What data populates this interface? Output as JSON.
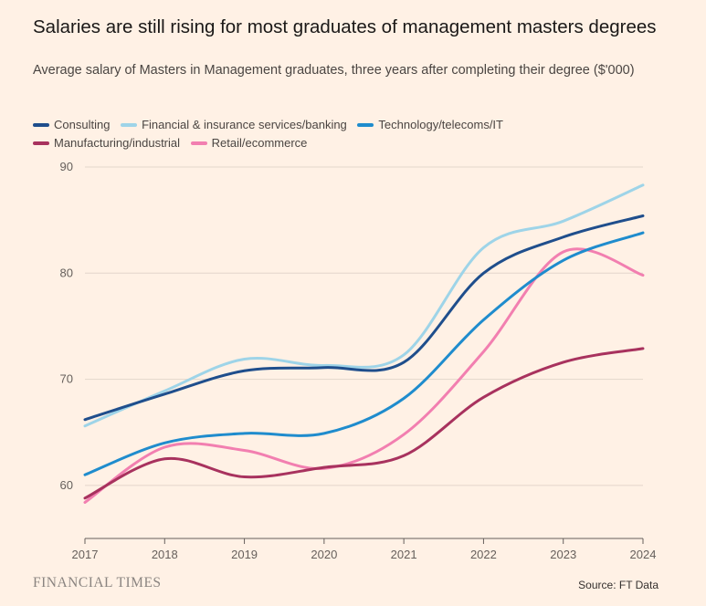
{
  "chart_data": {
    "type": "line",
    "title": "Salaries are still rising for most graduates of management masters degrees",
    "subtitle": "Average salary of Masters in Management graduates, three years after completing their degree ($'000)",
    "xlabel": "",
    "ylabel": "",
    "x": [
      "2017",
      "2018",
      "2019",
      "2020",
      "2021",
      "2022",
      "2023",
      "2024"
    ],
    "ylim": [
      55,
      90
    ],
    "yticks": [
      60,
      70,
      80,
      90
    ],
    "grid": true,
    "legend_position": "top-left",
    "series": [
      {
        "name": "Consulting",
        "color": "#1f4e8c",
        "values": [
          66.2,
          68.6,
          70.8,
          71.1,
          71.6,
          80.0,
          83.4,
          85.4
        ]
      },
      {
        "name": "Financial & insurance services/banking",
        "color": "#9ed4e8",
        "values": [
          65.6,
          68.9,
          71.9,
          71.3,
          72.3,
          82.4,
          84.9,
          88.3
        ]
      },
      {
        "name": "Technology/telecoms/IT",
        "color": "#1f8ccd",
        "values": [
          61.0,
          64.0,
          64.9,
          64.9,
          68.2,
          75.6,
          81.2,
          83.8
        ]
      },
      {
        "name": "Manufacturing/industrial",
        "color": "#a8325e",
        "values": [
          58.8,
          62.5,
          60.8,
          61.7,
          62.8,
          68.3,
          71.6,
          72.9
        ]
      },
      {
        "name": "Retail/ecommerce",
        "color": "#f27fb0",
        "values": [
          58.4,
          63.6,
          63.3,
          61.6,
          64.8,
          72.6,
          82.0,
          79.8
        ]
      }
    ]
  },
  "footer": {
    "brand": "FINANCIAL TIMES",
    "source": "Source: FT Data"
  }
}
